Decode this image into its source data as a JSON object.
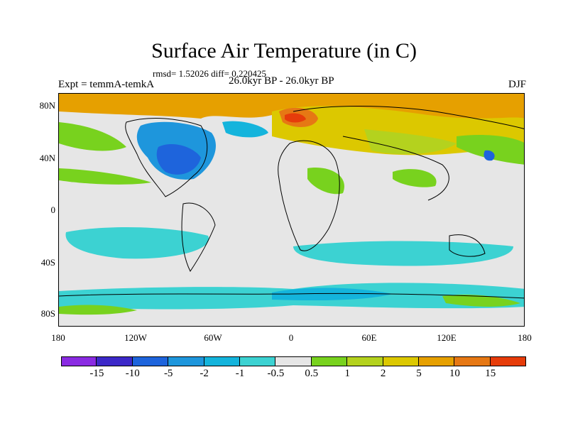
{
  "header": {
    "title": "Surface Air Temperature (in C)",
    "stats": "rmsd= 1.52026 diff= 0.220425",
    "period": "26.0kyr BP - 26.0kyr BP",
    "experiment": "Expt = temmA-temkA",
    "season": "DJF"
  },
  "axes": {
    "y_ticks": [
      "80N",
      "40N",
      "0",
      "40S",
      "80S"
    ],
    "x_ticks": [
      "180",
      "120W",
      "60W",
      "0",
      "60E",
      "120E",
      "180"
    ]
  },
  "colorbar": {
    "colors": [
      "#8a2be2",
      "#3c28c8",
      "#1e64dc",
      "#1e96dc",
      "#14b4dc",
      "#3cd2d2",
      "#e6e6e6",
      "#78d21e",
      "#b4d21e",
      "#dcc800",
      "#e6a000",
      "#e67814",
      "#e63c0a"
    ],
    "labels": [
      "-15",
      "-10",
      "-5",
      "-2",
      "-1",
      "-0.5",
      "0.5",
      "1",
      "2",
      "5",
      "10",
      "15"
    ]
  }
}
